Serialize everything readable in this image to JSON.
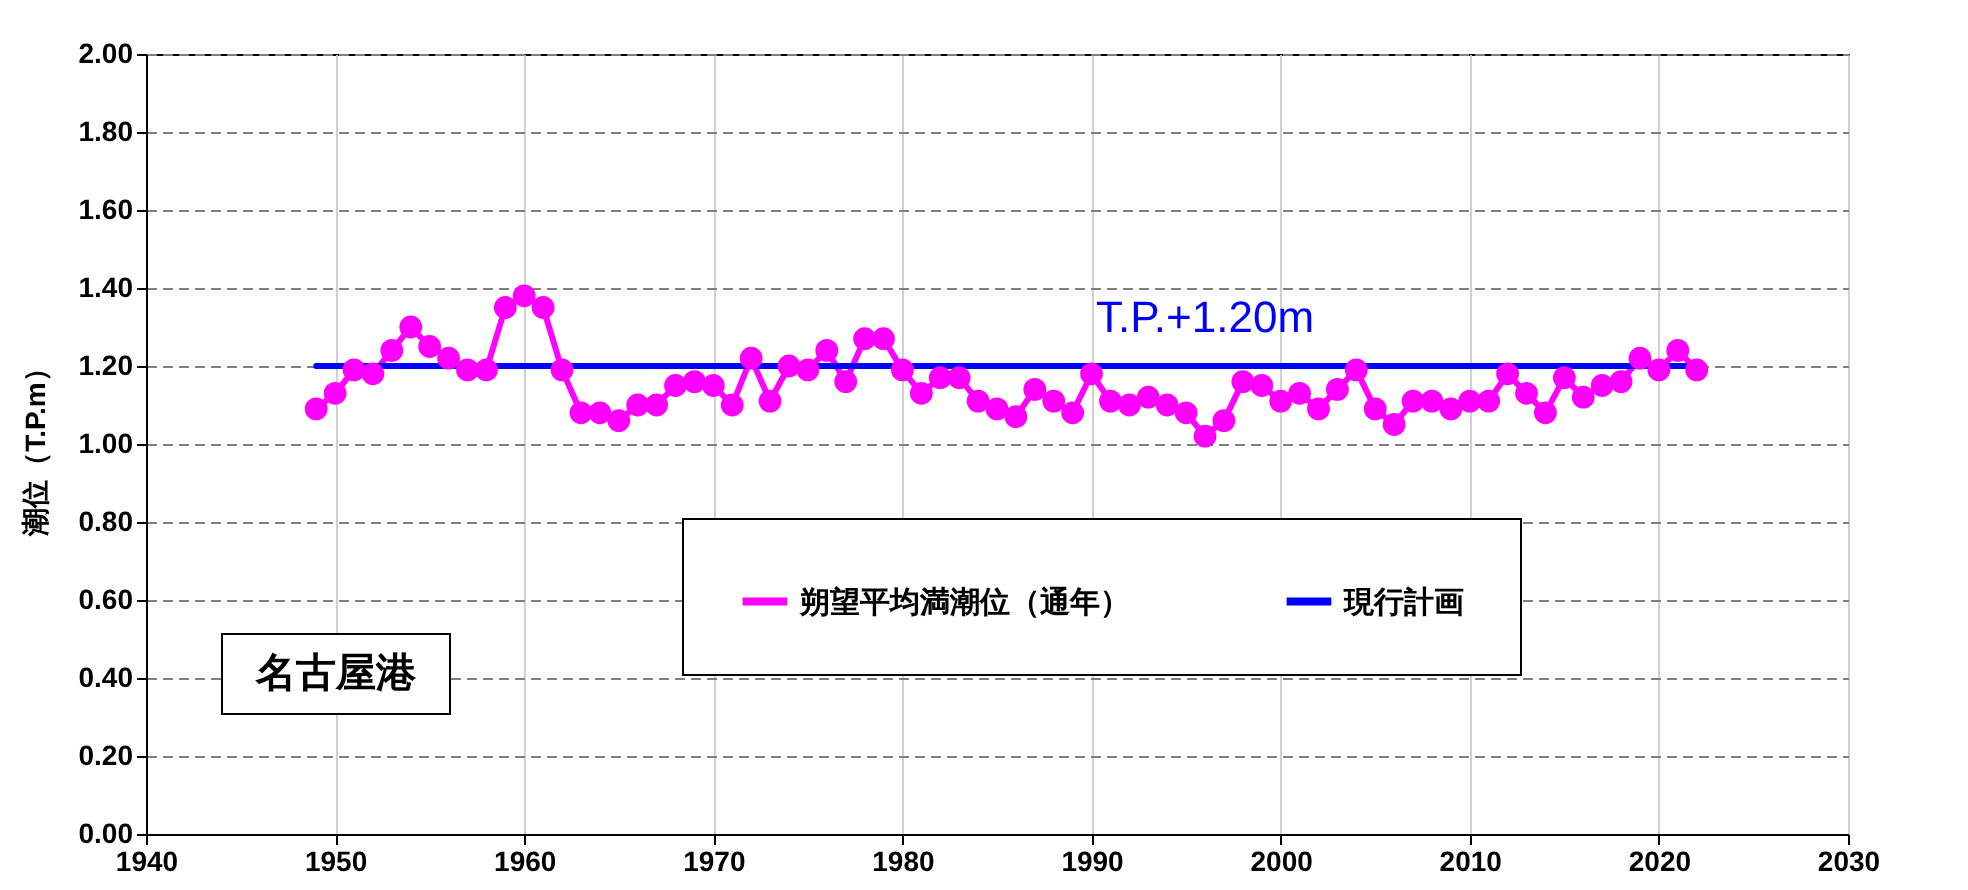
{
  "chart_data": {
    "type": "line",
    "ylabel": "潮位（T.P.m）",
    "x": [
      1949,
      1950,
      1951,
      1952,
      1953,
      1954,
      1955,
      1956,
      1957,
      1958,
      1959,
      1960,
      1961,
      1962,
      1963,
      1964,
      1965,
      1966,
      1967,
      1968,
      1969,
      1970,
      1971,
      1972,
      1973,
      1974,
      1975,
      1976,
      1977,
      1978,
      1979,
      1980,
      1981,
      1982,
      1983,
      1984,
      1985,
      1986,
      1987,
      1988,
      1989,
      1990,
      1991,
      1992,
      1993,
      1994,
      1995,
      1996,
      1997,
      1998,
      1999,
      2000,
      2001,
      2002,
      2003,
      2004,
      2005,
      2006,
      2007,
      2008,
      2009,
      2010,
      2011,
      2012,
      2013,
      2014,
      2015,
      2016,
      2017,
      2018,
      2019,
      2020,
      2021,
      2022
    ],
    "series": [
      {
        "name": "朔望平均満潮位（通年）",
        "color": "#ff00ff",
        "marker": "circle",
        "values": [
          1.09,
          1.13,
          1.19,
          1.18,
          1.24,
          1.3,
          1.25,
          1.22,
          1.19,
          1.19,
          1.35,
          1.38,
          1.35,
          1.19,
          1.08,
          1.08,
          1.06,
          1.1,
          1.1,
          1.15,
          1.16,
          1.15,
          1.1,
          1.22,
          1.11,
          1.2,
          1.19,
          1.24,
          1.16,
          1.27,
          1.27,
          1.19,
          1.13,
          1.17,
          1.17,
          1.11,
          1.09,
          1.07,
          1.14,
          1.11,
          1.08,
          1.18,
          1.11,
          1.1,
          1.12,
          1.1,
          1.08,
          1.02,
          1.06,
          1.16,
          1.15,
          1.11,
          1.13,
          1.09,
          1.14,
          1.19,
          1.09,
          1.05,
          1.11,
          1.11,
          1.09,
          1.11,
          1.11,
          1.18,
          1.13,
          1.08,
          1.17,
          1.12,
          1.15,
          1.16,
          1.22,
          1.19,
          1.24,
          1.19
        ]
      },
      {
        "name": "現行計画",
        "color": "#0000ff",
        "marker": "none",
        "x": [
          1949,
          2022
        ],
        "values": [
          1.2,
          1.2
        ]
      }
    ],
    "xlim": [
      1940,
      2030
    ],
    "xticks": [
      1940,
      1950,
      1960,
      1970,
      1980,
      1990,
      2000,
      2010,
      2020,
      2030
    ],
    "ylim": [
      0,
      2
    ],
    "yticks": [
      {
        "value": 0,
        "label": "0.00"
      },
      {
        "value": 0.2,
        "label": "0.20"
      },
      {
        "value": 0.4,
        "label": "0.40"
      },
      {
        "value": 0.6,
        "label": "0.60"
      },
      {
        "value": 0.8,
        "label": "0.80"
      },
      {
        "value": 1,
        "label": "1.00"
      },
      {
        "value": 1.2,
        "label": "1.20"
      },
      {
        "value": 1.4,
        "label": "1.40"
      },
      {
        "value": 1.6,
        "label": "1.60"
      },
      {
        "value": 1.8,
        "label": "1.80"
      },
      {
        "value": 2,
        "label": "2.00"
      }
    ],
    "grid": true,
    "legend": "bottom right",
    "annotations": [
      {
        "text": "T.P.+1.20m",
        "x": 1996,
        "y": 1.2
      },
      "名古屋港"
    ]
  }
}
